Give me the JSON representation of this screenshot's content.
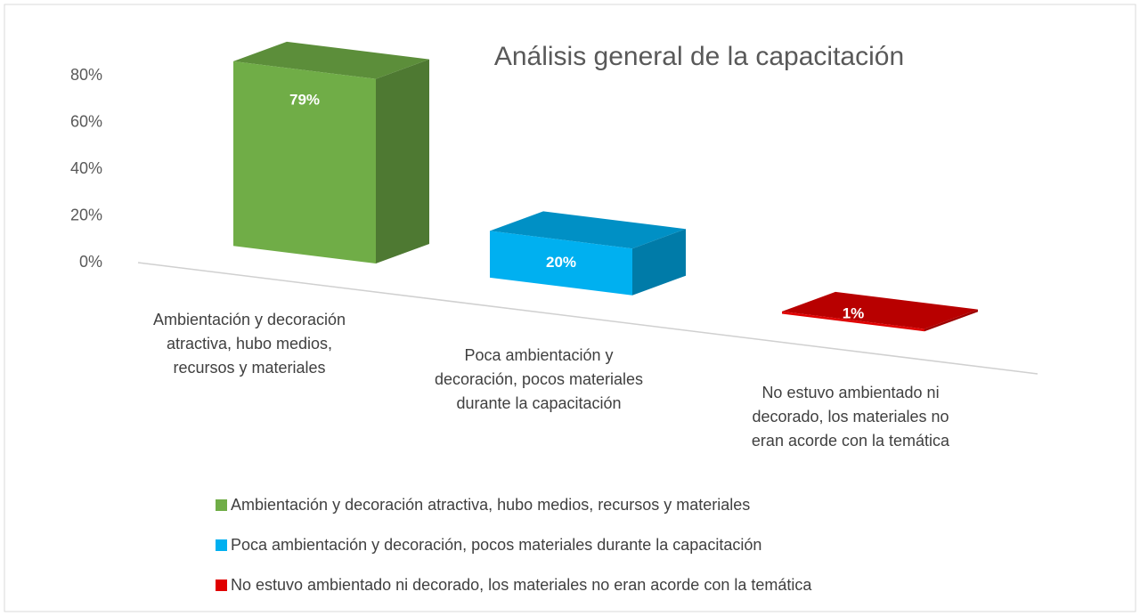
{
  "chart_data": {
    "type": "bar3d",
    "title": "Análisis general de la capacitación",
    "categories": [
      "Ambientación y decoración atractiva, hubo medios, recursos y materiales",
      "Poca ambientación y decoración, pocos materiales durante la capacitación",
      "No estuvo ambientado ni decorado, los materiales no eran acorde con la temática"
    ],
    "values": [
      79,
      20,
      1
    ],
    "value_labels": [
      "79%",
      "20%",
      "1%"
    ],
    "colors": [
      "#70ad47",
      "#00b0f0",
      "#e00000"
    ],
    "ylim": [
      0,
      80
    ],
    "yticks": [
      {
        "value": 0,
        "label": "0%"
      },
      {
        "value": 20,
        "label": "20%"
      },
      {
        "value": 40,
        "label": "40%"
      },
      {
        "value": 60,
        "label": "60%"
      },
      {
        "value": 80,
        "label": "80%"
      }
    ],
    "legend": "bottom"
  }
}
